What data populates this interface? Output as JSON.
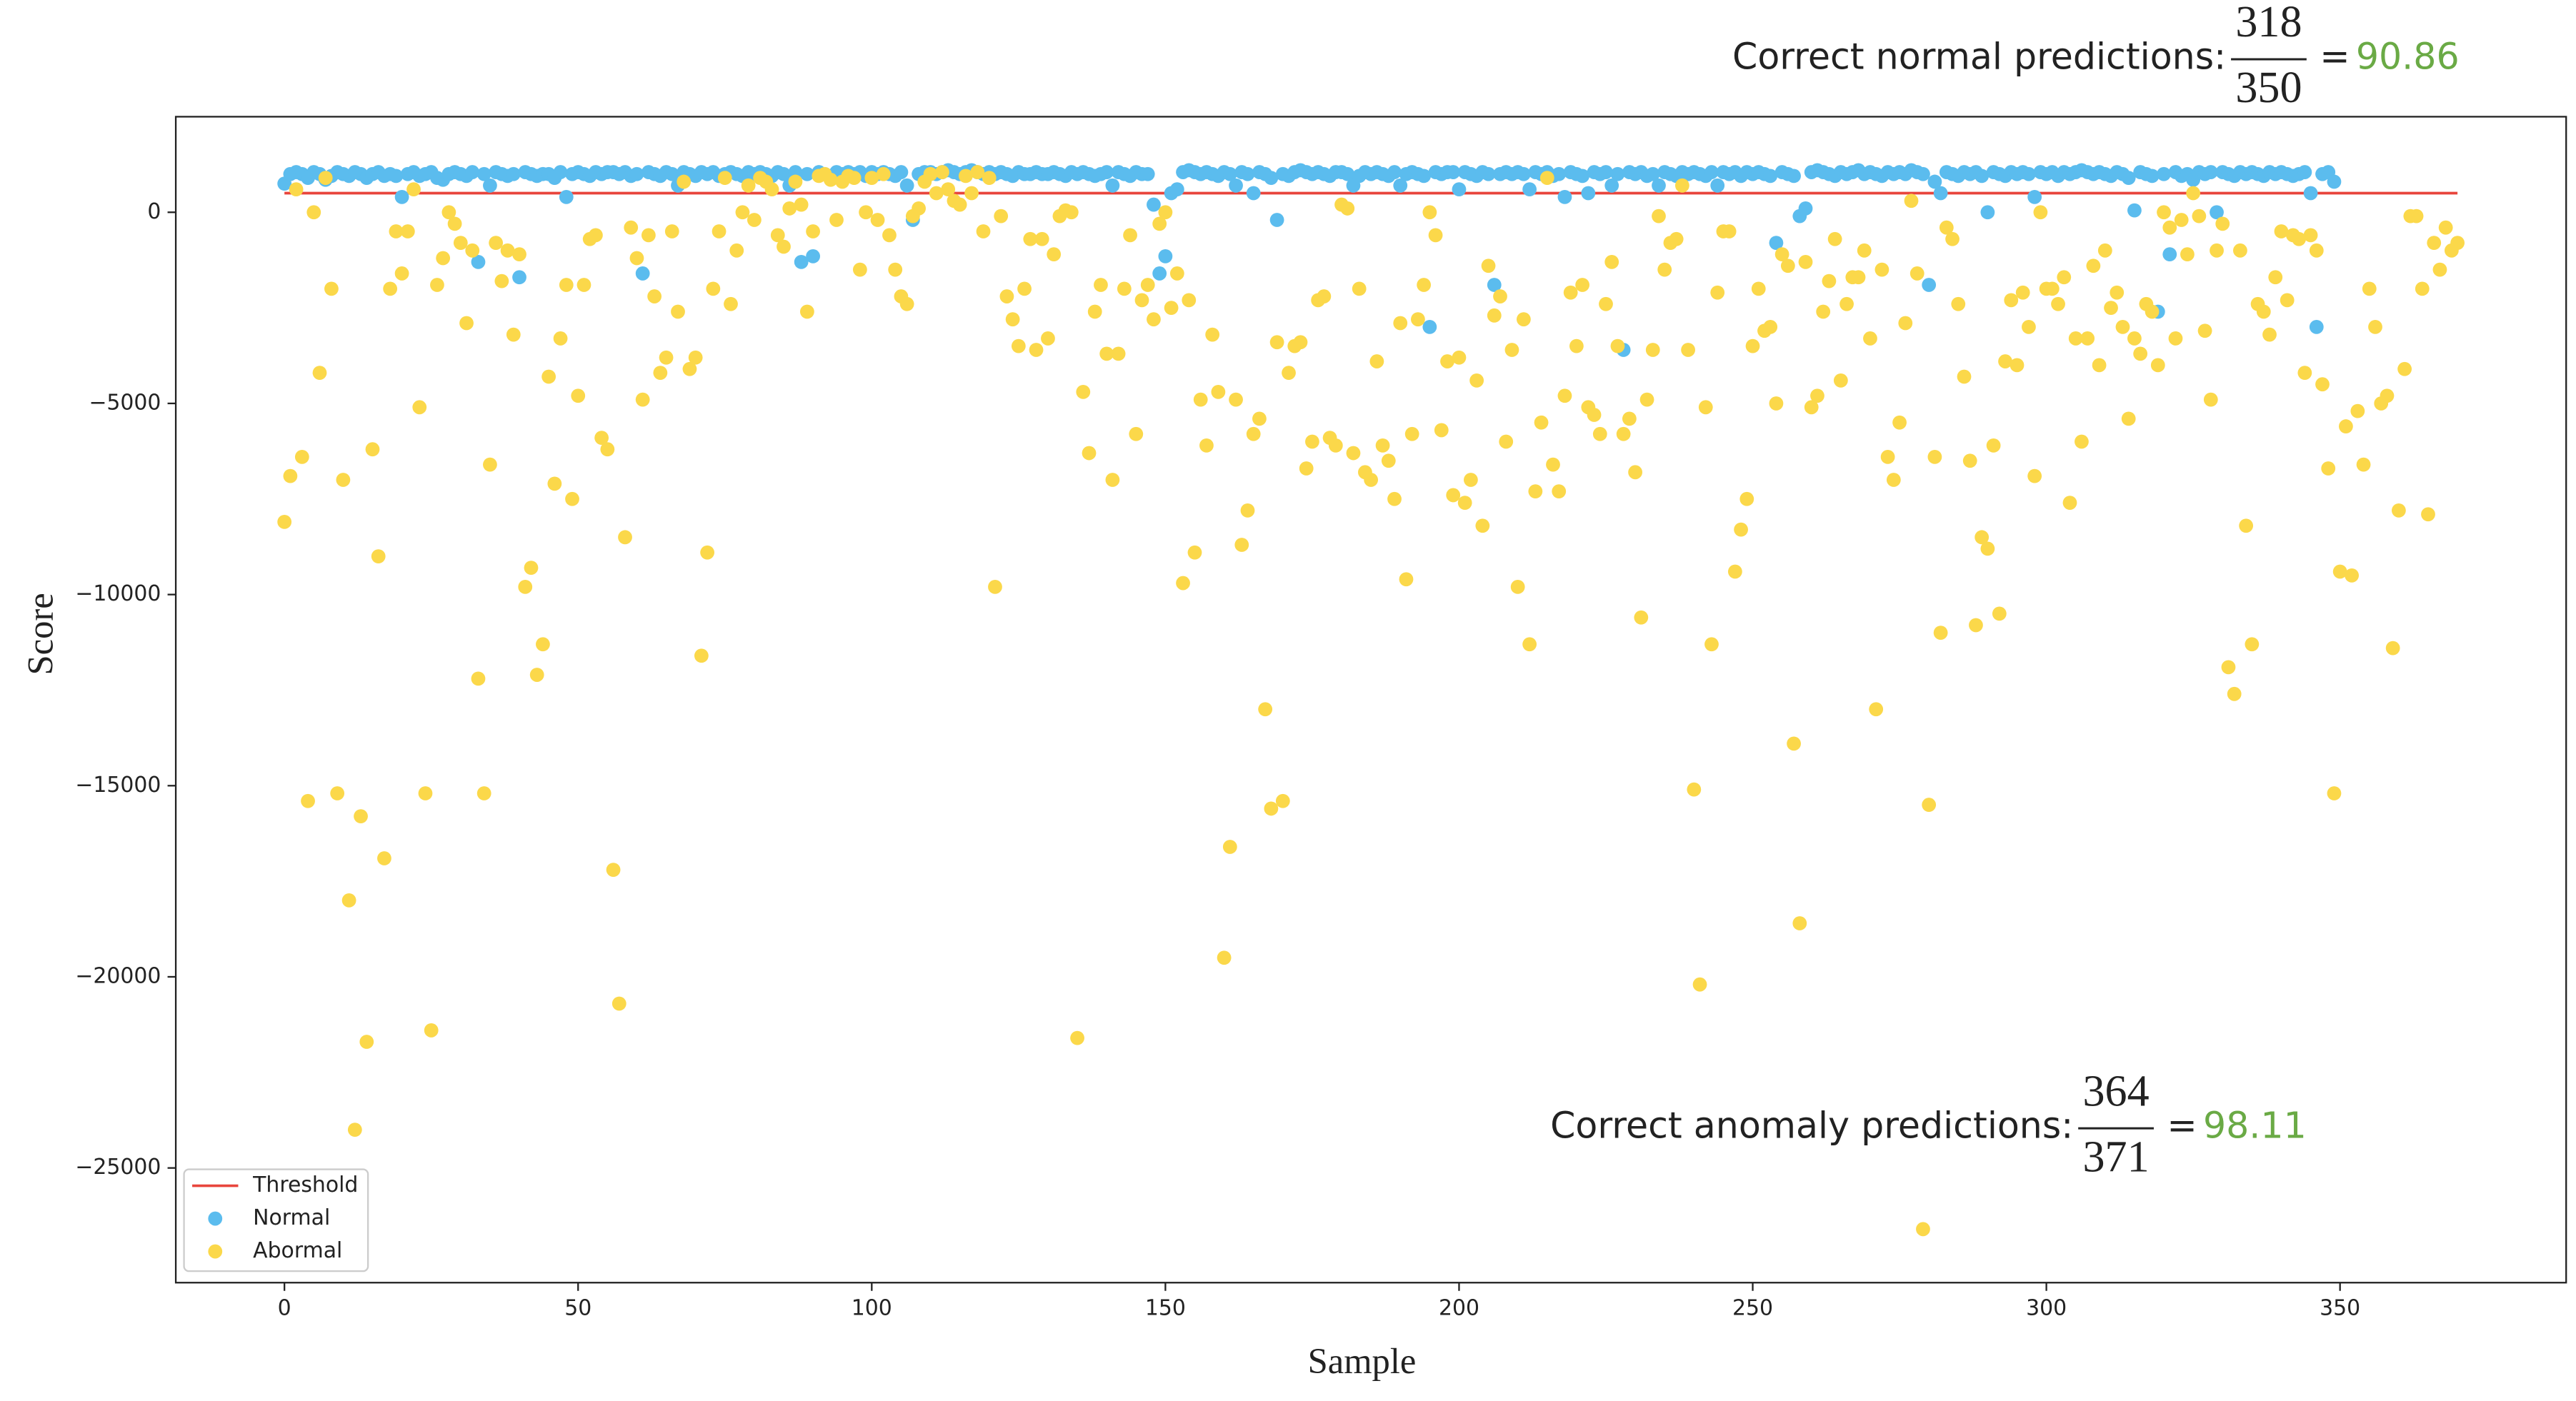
{
  "chart_data": {
    "type": "scatter",
    "x_label": "Sample",
    "y_label": "Score",
    "xlim": [
      -18.5,
      388.5
    ],
    "ylim": [
      -28000,
      2500
    ],
    "xticks": [
      0,
      50,
      100,
      150,
      200,
      250,
      300,
      350
    ],
    "yticks": [
      {
        "value": 0,
        "label": "0"
      },
      {
        "value": -5000,
        "label": "−5000"
      },
      {
        "value": -10000,
        "label": "−10000"
      },
      {
        "value": -15000,
        "label": "−15000"
      },
      {
        "value": -20000,
        "label": "−20000"
      },
      {
        "value": -25000,
        "label": "−25000"
      }
    ],
    "legend": "lower left",
    "threshold": {
      "name": "Threshold",
      "color": "#e8453c",
      "value": 500,
      "x": [
        0,
        370
      ]
    },
    "series": [
      {
        "name": "Normal",
        "color": "#5bbcee",
        "values": [
          750,
          1000,
          1050,
          1000,
          900,
          1050,
          1000,
          850,
          950,
          1050,
          1000,
          950,
          1050,
          1000,
          900,
          1000,
          1050,
          950,
          1000,
          950,
          400,
          1000,
          1050,
          950,
          1000,
          1050,
          900,
          850,
          1000,
          1050,
          1000,
          950,
          1050,
          -1300,
          1000,
          700,
          1050,
          1000,
          950,
          1000,
          -1700,
          1050,
          1000,
          950,
          1000,
          1000,
          900,
          1050,
          400,
          1000,
          1050,
          1000,
          950,
          1050,
          1000,
          1050,
          1050,
          1000,
          1050,
          950,
          1000,
          -1600,
          1050,
          1000,
          950,
          1050,
          1000,
          700,
          1050,
          1000,
          950,
          1050,
          1000,
          1050,
          950,
          1000,
          1050,
          1000,
          950,
          1050,
          1000,
          1050,
          1000,
          950,
          1050,
          1000,
          700,
          1050,
          -1300,
          1000,
          -1150,
          1050,
          1000,
          950,
          1050,
          1000,
          1050,
          1000,
          1050,
          950,
          1050,
          1000,
          1050,
          1000,
          950,
          1050,
          700,
          -200,
          1000,
          1050,
          1050,
          1000,
          1050,
          1100,
          1050,
          1000,
          1050,
          1100,
          1050,
          1000,
          1050,
          1000,
          1050,
          1000,
          950,
          1050,
          1000,
          1000,
          1050,
          1000,
          1000,
          1050,
          1000,
          950,
          1050,
          1000,
          1050,
          1000,
          950,
          1000,
          1050,
          700,
          1050,
          1000,
          950,
          1050,
          1000,
          1000,
          200,
          -1600,
          -1150,
          500,
          600,
          1050,
          1100,
          1050,
          1000,
          1050,
          1000,
          950,
          1050,
          1000,
          700,
          1050,
          1000,
          500,
          1050,
          1000,
          900,
          -200,
          1000,
          950,
          1050,
          1100,
          1050,
          1000,
          1050,
          1000,
          950,
          1050,
          1050,
          1000,
          700,
          950,
          1050,
          1000,
          1050,
          1000,
          950,
          1050,
          700,
          1000,
          1050,
          1000,
          950,
          -3000,
          1050,
          1000,
          1050,
          1050,
          600,
          1050,
          1000,
          950,
          1050,
          1000,
          -1900,
          1000,
          1050,
          1000,
          1050,
          1000,
          600,
          1050,
          1000,
          1050,
          950,
          1000,
          400,
          1050,
          1000,
          950,
          500,
          1050,
          1000,
          1050,
          700,
          1000,
          -3600,
          1050,
          1000,
          1050,
          950,
          1000,
          700,
          1050,
          1000,
          950,
          1050,
          1000,
          1050,
          1000,
          950,
          1050,
          700,
          1050,
          1000,
          1050,
          950,
          1050,
          1000,
          1050,
          1000,
          950,
          -800,
          1050,
          1000,
          950,
          -100,
          100,
          1050,
          1100,
          1050,
          1000,
          950,
          1050,
          1000,
          1050,
          1100,
          1000,
          1050,
          1000,
          950,
          1050,
          1000,
          1050,
          1000,
          1100,
          1050,
          1000,
          -1900,
          800,
          500,
          1050,
          1000,
          950,
          1050,
          1000,
          1050,
          950,
          0,
          1050,
          1000,
          950,
          1050,
          1000,
          1050,
          1000,
          400,
          1050,
          1000,
          1050,
          950,
          1050,
          1000,
          1050,
          1100,
          1050,
          1000,
          1050,
          1000,
          950,
          1050,
          1000,
          900,
          50,
          1050,
          1000,
          950,
          -2600,
          1000,
          -1100,
          1050,
          950,
          1000,
          850,
          1050,
          1000,
          1050,
          0,
          1050,
          1000,
          950,
          1050,
          1000,
          1050,
          1000,
          950,
          1050,
          1000,
          1050,
          1000,
          950,
          1000,
          1050,
          500,
          -3000,
          1000,
          1050,
          800
        ]
      },
      {
        "name": "Abormal",
        "color": "#fbd84a",
        "values": [
          -8100,
          -6900,
          600,
          -6400,
          -15400,
          0,
          -4200,
          900,
          -2000,
          -15200,
          -7000,
          -18000,
          -24000,
          -15800,
          -21700,
          -6200,
          -9000,
          -16900,
          -2000,
          -500,
          -1600,
          -500,
          600,
          -5100,
          -15200,
          -21400,
          -1900,
          -1200,
          0,
          -300,
          -800,
          -2900,
          -1000,
          -12200,
          -15200,
          -6600,
          -800,
          -1800,
          -1000,
          -3200,
          -1100,
          -9800,
          -9300,
          -12100,
          -11300,
          -4300,
          -7100,
          -3300,
          -1900,
          -7500,
          -4800,
          -1900,
          -700,
          -600,
          -5900,
          -6200,
          -17200,
          -20700,
          -8500,
          -400,
          -1200,
          -4900,
          -600,
          -2200,
          -4200,
          -3800,
          -500,
          -2600,
          800,
          -4100,
          -3800,
          -11600,
          -8900,
          -2000,
          -500,
          900,
          -2400,
          -1000,
          0,
          700,
          -200,
          900,
          800,
          600,
          -600,
          -900,
          100,
          800,
          200,
          -2600,
          -500,
          950,
          1000,
          850,
          -200,
          800,
          950,
          900,
          -1500,
          0,
          900,
          -200,
          1000,
          -600,
          -1500,
          -2200,
          -2400,
          -100,
          100,
          800,
          1000,
          500,
          1050,
          600,
          300,
          200,
          950,
          500,
          1050,
          -500,
          900,
          -9800,
          -100,
          -2200,
          -2800,
          -3500,
          -2000,
          -700,
          -3600,
          -700,
          -3300,
          -1100,
          -100,
          50,
          0,
          -21600,
          -4700,
          -6300,
          -2600,
          -1900,
          -3700,
          -7000,
          -3700,
          -2000,
          -600,
          -5800,
          -2300,
          -1900,
          -2800,
          -300,
          0,
          -2500,
          -1600,
          -9700,
          -2300,
          -8900,
          -4900,
          -6100,
          -3200,
          -4700,
          -19500,
          -16600,
          -4900,
          -8700,
          -7800,
          -5800,
          -5400,
          -13000,
          -15600,
          -3400,
          -15400,
          -4200,
          -3500,
          -3400,
          -6700,
          -6000,
          -2300,
          -2200,
          -5900,
          -6100,
          200,
          100,
          -6300,
          -2000,
          -6800,
          -7000,
          -3900,
          -6100,
          -6500,
          -7500,
          -2900,
          -9600,
          -5800,
          -2800,
          -1900,
          0,
          -600,
          -5700,
          -3900,
          -7400,
          -3800,
          -7600,
          -7000,
          -4400,
          -8200,
          -1400,
          -2700,
          -2200,
          -6000,
          -3600,
          -9800,
          -2800,
          -11300,
          -7300,
          -5500,
          900,
          -6600,
          -7300,
          -4800,
          -2100,
          -3500,
          -1900,
          -5100,
          -5300,
          -5800,
          -2400,
          -1300,
          -3500,
          -5800,
          -5400,
          -6800,
          -10600,
          -4900,
          -3600,
          -100,
          -1500,
          -800,
          -700,
          700,
          -3600,
          -15100,
          -20200,
          -5100,
          -11300,
          -2100,
          -500,
          -500,
          -9400,
          -8300,
          -7500,
          -3500,
          -2000,
          -3100,
          -3000,
          -5000,
          -1100,
          -1400,
          -13900,
          -18600,
          -1300,
          -5100,
          -4800,
          -2600,
          -1800,
          -700,
          -4400,
          -2400,
          -1700,
          -1700,
          -1000,
          -3300,
          -13000,
          -1500,
          -6400,
          -7000,
          -5500,
          -2900,
          300,
          -1600,
          -26600,
          -15500,
          -6400,
          -11000,
          -400,
          -700,
          -2400,
          -4300,
          -6500,
          -10800,
          -8500,
          -8800,
          -6100,
          -10500,
          -3900,
          -2300,
          -4000,
          -2100,
          -3000,
          -6900,
          0,
          -2000,
          -2000,
          -2400,
          -1700,
          -7600,
          -3300,
          -6000,
          -3300,
          -1400,
          -4000,
          -1000,
          -2500,
          -2100,
          -3000,
          -5400,
          -3300,
          -3700,
          -2400,
          -2600,
          -4000,
          0,
          -400,
          -3300,
          -200,
          -1100,
          500,
          -100,
          -3100,
          -4900,
          -1000,
          -300,
          -11900,
          -12600,
          -1000,
          -8200,
          -11300,
          -2400,
          -2600,
          -3200,
          -1700,
          -500,
          -2300,
          -600,
          -700,
          -4200,
          -600,
          -1000,
          -4500,
          -6700,
          -15200,
          -9400,
          -5600,
          -9500,
          -5200,
          -6600,
          -2000,
          -3000,
          -5000,
          -4800,
          -11400,
          -7800,
          -4100,
          -100,
          -100,
          -2000,
          -7900,
          -800,
          -1500,
          -400,
          -1000,
          -800
        ]
      }
    ],
    "annotations": [
      {
        "text": "Correct normal predictions:",
        "numerator": 318,
        "denominator": 350,
        "equals": "=",
        "result": 90.86
      },
      {
        "text": "Correct anomaly predictions:",
        "numerator": 364,
        "denominator": 371,
        "equals": "=",
        "result": 98.11
      }
    ]
  }
}
